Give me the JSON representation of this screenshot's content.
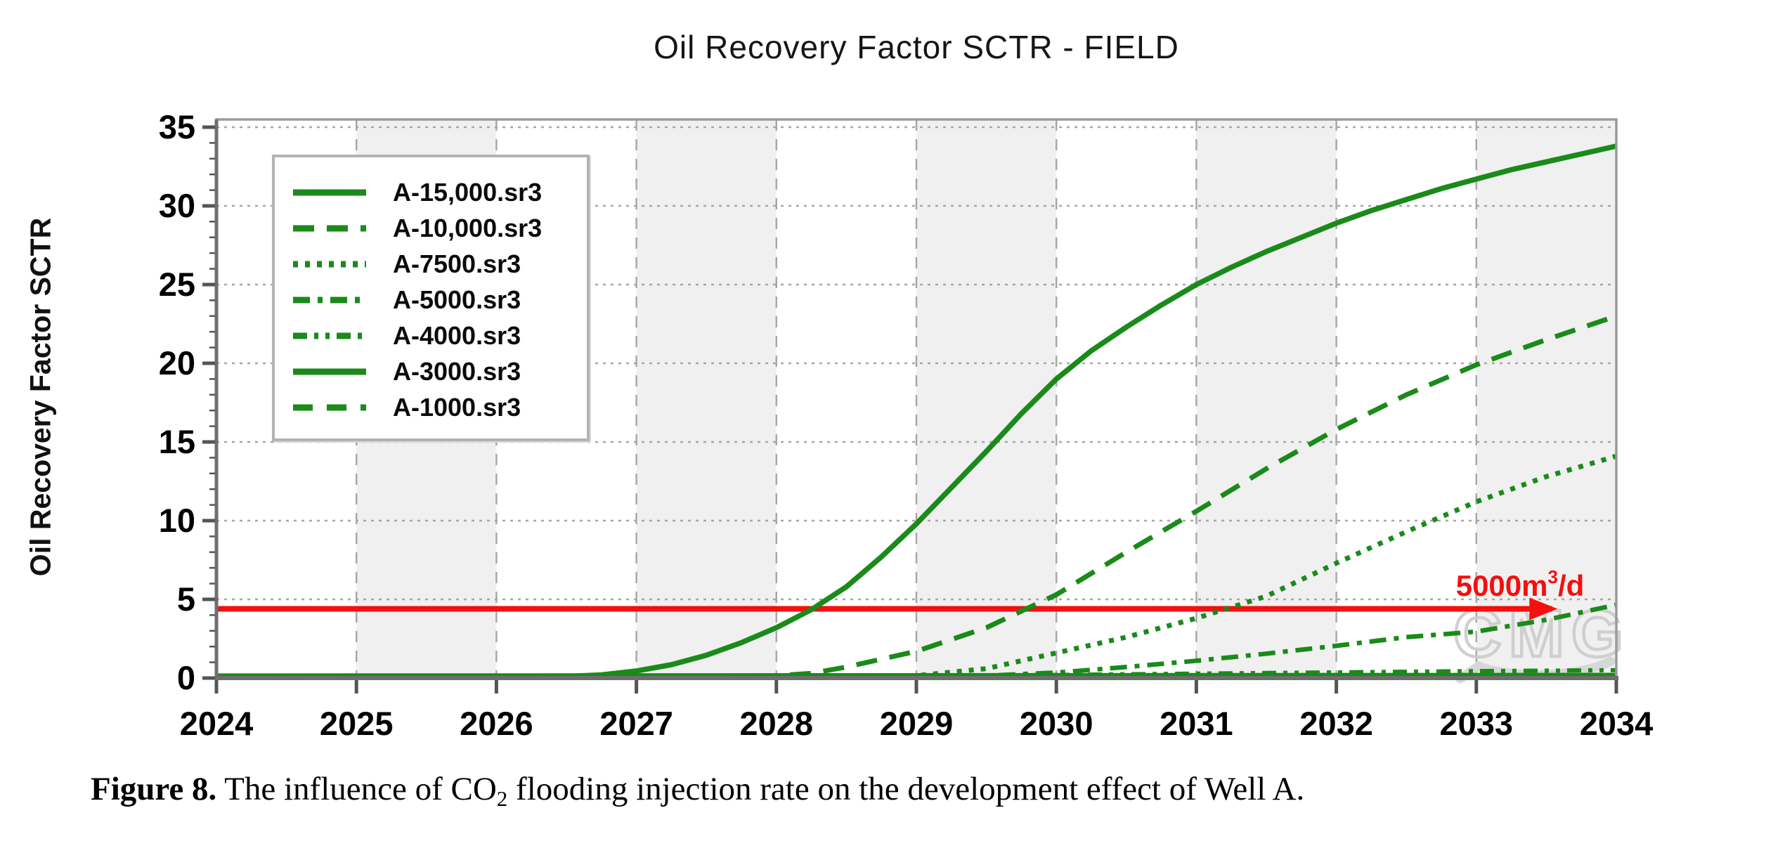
{
  "figure": {
    "caption": {
      "label": "Figure 8.",
      "before": " The influence of CO",
      "sub": "2",
      "after": " flooding injection rate on the development effect of Well A."
    }
  },
  "chart_data": {
    "type": "line",
    "title": "Oil Recovery Factor SCTR - FIELD",
    "xlabel": "",
    "ylabel": "Oil Recovery Factor SCTR",
    "xlim": [
      2024,
      2034
    ],
    "ylim": [
      0,
      35
    ],
    "x_ticks": [
      2024,
      2025,
      2026,
      2027,
      2028,
      2029,
      2030,
      2031,
      2032,
      2033,
      2034
    ],
    "y_ticks": [
      0,
      5,
      10,
      15,
      20,
      25,
      30,
      35
    ],
    "grid": {
      "horizontal": "dotted",
      "vertical": "dashed",
      "on": true
    },
    "legend_position": "upper-left",
    "background_bands_years": [
      [
        2025,
        2026
      ],
      [
        2027,
        2028
      ],
      [
        2029,
        2030
      ],
      [
        2031,
        2032
      ],
      [
        2033,
        2034
      ]
    ],
    "colors": {
      "series_green": "#1a8a1a",
      "annotation_red": "#f50f0f",
      "band_gray": "#f0f0f0",
      "grid_gray": "#a6a6a6",
      "border_gray": "#9b9b9b",
      "axis_dark": "#6e6e6e",
      "watermark_gray": "#cccccc"
    },
    "series": [
      {
        "name": "A-15,000.sr3",
        "style": "solid",
        "dash": "",
        "width": 7.5,
        "points": [
          [
            2024,
            0.05
          ],
          [
            2025,
            0.05
          ],
          [
            2026,
            0.06
          ],
          [
            2026.5,
            0.1
          ],
          [
            2026.75,
            0.2
          ],
          [
            2027,
            0.45
          ],
          [
            2027.25,
            0.85
          ],
          [
            2027.5,
            1.45
          ],
          [
            2027.75,
            2.25
          ],
          [
            2028,
            3.2
          ],
          [
            2028.25,
            4.35
          ],
          [
            2028.5,
            5.8
          ],
          [
            2028.75,
            7.7
          ],
          [
            2029,
            9.8
          ],
          [
            2029.25,
            12.1
          ],
          [
            2029.5,
            14.4
          ],
          [
            2029.75,
            16.8
          ],
          [
            2030,
            19.0
          ],
          [
            2030.25,
            20.8
          ],
          [
            2030.5,
            22.3
          ],
          [
            2030.75,
            23.7
          ],
          [
            2031,
            25.0
          ],
          [
            2031.25,
            26.1
          ],
          [
            2031.5,
            27.1
          ],
          [
            2031.75,
            28.0
          ],
          [
            2032,
            28.9
          ],
          [
            2032.25,
            29.7
          ],
          [
            2032.5,
            30.4
          ],
          [
            2032.75,
            31.1
          ],
          [
            2033,
            31.7
          ],
          [
            2033.25,
            32.3
          ],
          [
            2033.5,
            32.8
          ],
          [
            2033.75,
            33.3
          ],
          [
            2034,
            33.8
          ]
        ]
      },
      {
        "name": "A-10,000.sr3",
        "style": "dashed",
        "dash": "30 18",
        "width": 7,
        "points": [
          [
            2024,
            0.05
          ],
          [
            2027.5,
            0.06
          ],
          [
            2028,
            0.15
          ],
          [
            2028.25,
            0.3
          ],
          [
            2028.5,
            0.7
          ],
          [
            2029,
            1.7
          ],
          [
            2029.5,
            3.2
          ],
          [
            2030,
            5.3
          ],
          [
            2030.5,
            8.0
          ],
          [
            2031,
            10.6
          ],
          [
            2031.5,
            13.3
          ],
          [
            2032,
            15.8
          ],
          [
            2032.5,
            18.0
          ],
          [
            2033,
            19.9
          ],
          [
            2033.5,
            21.5
          ],
          [
            2034,
            23.0
          ]
        ]
      },
      {
        "name": "A-7500.sr3",
        "style": "dotted",
        "dash": "7 10",
        "width": 7,
        "points": [
          [
            2024,
            0.05
          ],
          [
            2028.5,
            0.06
          ],
          [
            2029,
            0.15
          ],
          [
            2029.5,
            0.6
          ],
          [
            2030,
            1.6
          ],
          [
            2030.5,
            2.6
          ],
          [
            2031,
            3.8
          ],
          [
            2031.5,
            5.2
          ],
          [
            2032,
            7.3
          ],
          [
            2032.5,
            9.3
          ],
          [
            2033,
            11.2
          ],
          [
            2033.5,
            12.8
          ],
          [
            2034,
            14.1
          ]
        ]
      },
      {
        "name": "A-5000.sr3",
        "style": "dash-dot",
        "dash": "24 11 7 11",
        "width": 6.5,
        "points": [
          [
            2024,
            0.05
          ],
          [
            2029,
            0.08
          ],
          [
            2029.5,
            0.15
          ],
          [
            2030,
            0.35
          ],
          [
            2030.5,
            0.7
          ],
          [
            2031,
            1.1
          ],
          [
            2031.5,
            1.55
          ],
          [
            2032,
            2.05
          ],
          [
            2032.5,
            2.6
          ],
          [
            2033,
            2.95
          ],
          [
            2033.5,
            3.7
          ],
          [
            2034,
            4.65
          ]
        ]
      },
      {
        "name": "A-4000.sr3",
        "style": "dash-dot-dot",
        "dash": "20 10 6 10 6 10",
        "width": 6,
        "points": [
          [
            2024,
            0.07
          ],
          [
            2028,
            0.1
          ],
          [
            2029,
            0.14
          ],
          [
            2030,
            0.2
          ],
          [
            2031,
            0.28
          ],
          [
            2032,
            0.36
          ],
          [
            2033,
            0.44
          ],
          [
            2034,
            0.5
          ]
        ]
      },
      {
        "name": "A-3000.sr3",
        "style": "solid",
        "dash": "",
        "width": 6,
        "points": [
          [
            2024,
            0.16
          ],
          [
            2034,
            0.2
          ]
        ]
      },
      {
        "name": "A-1000.sr3",
        "style": "dashed",
        "dash": "28 20",
        "width": 6,
        "points": [
          [
            2024,
            0.1
          ],
          [
            2034,
            0.12
          ]
        ]
      }
    ],
    "annotation": {
      "text_main": "5000m",
      "text_sup": "3",
      "text_rest": "/d",
      "y_value": 4.4,
      "arrow_start_year": 2024,
      "arrow_end_year": 2033.58
    },
    "watermark": "CMG"
  }
}
